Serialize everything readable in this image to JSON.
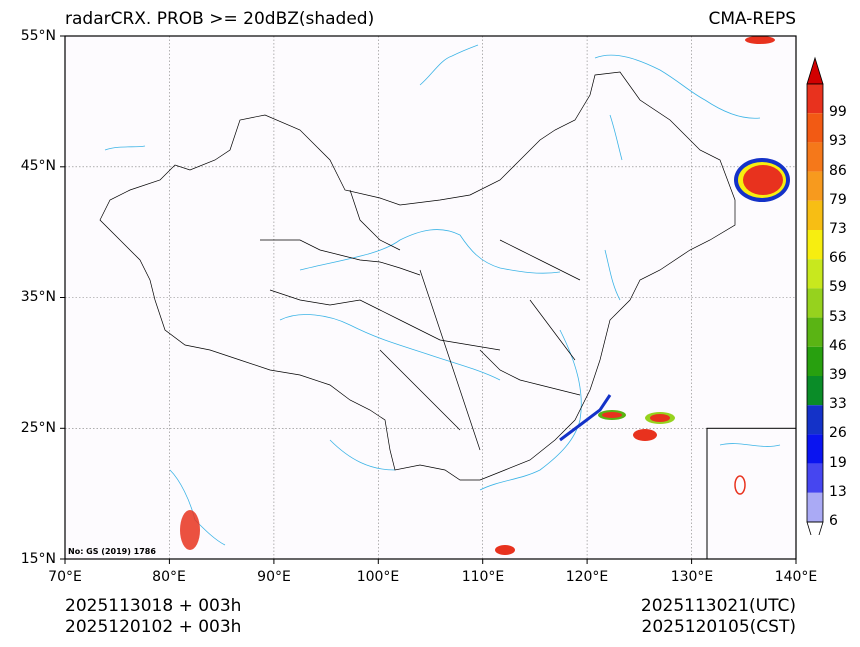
{
  "title": {
    "left": "radarCRX. PROB >= 20dBZ(shaded)",
    "right": "CMA-REPS"
  },
  "map": {
    "lat_labels": [
      "55°N",
      "45°N",
      "35°N",
      "25°N",
      "15°N"
    ],
    "lon_labels": [
      "70°E",
      "80°E",
      "90°E",
      "100°E",
      "110°E",
      "120°E",
      "130°E",
      "140°E"
    ],
    "stamp": "No: GS (2019) 1786"
  },
  "colorbar": {
    "labels": [
      "99",
      "93",
      "86",
      "79",
      "73",
      "66",
      "59",
      "53",
      "46",
      "39",
      "33",
      "26",
      "19",
      "13",
      "6"
    ],
    "colors": [
      "#e8321e",
      "#f25a14",
      "#f5781a",
      "#f79a1e",
      "#f7be14",
      "#f7ee10",
      "#c8e81e",
      "#96d21e",
      "#5ab414",
      "#28a00f",
      "#0a8c28",
      "#1432c8",
      "#0a14f0",
      "#4646f0",
      "#aaaaf5"
    ],
    "top_arrow_color": "#d20000",
    "bottom_arrow_color": "#ffffff"
  },
  "footer": {
    "init_utc": "2025113018  +  003h",
    "init_cst": "2025120102  +  003h",
    "valid_utc": "2025113021(UTC)",
    "valid_cst": "2025120105(CST)"
  },
  "colors": {
    "river": "#3cb4e6",
    "border": "#000000",
    "grid": "#808080"
  }
}
